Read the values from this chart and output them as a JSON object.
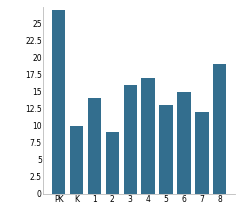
{
  "categories": [
    "PK",
    "K",
    "1",
    "2",
    "3",
    "4",
    "5",
    "6",
    "7",
    "8"
  ],
  "values": [
    27,
    10,
    14,
    9,
    16,
    17,
    13,
    15,
    12,
    19
  ],
  "bar_color": "#336e8e",
  "ylim": [
    0,
    27.5
  ],
  "yticks": [
    0,
    2.5,
    5,
    7.5,
    10,
    12.5,
    15,
    17.5,
    20,
    22.5,
    25
  ],
  "background_color": "#ffffff",
  "edge_color": "none",
  "tick_fontsize": 5.5,
  "bar_width": 0.75
}
